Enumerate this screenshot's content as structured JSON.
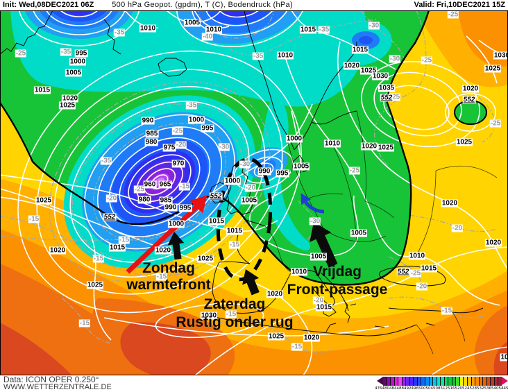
{
  "header": {
    "init_label": "Init: Wed,08DEC2021 06Z",
    "title": "500 hPa Geopot. (gpdm), T (C), Bodendruck (hPa)",
    "valid_label": "Valid: Fri,10DEC2021 15Z"
  },
  "footer": {
    "data_source": "Data: ICON OPER 0.250°",
    "website": "WWW.WETTERZENTRALE.DE"
  },
  "annotations": {
    "sunday": {
      "line1": "Zondag",
      "line2": "warmtefront",
      "arrow_color": "#e81010"
    },
    "saturday": {
      "line1": "Zaterdag",
      "line2": "Rustig onder rug",
      "arrow_color": "#0b0b0b"
    },
    "friday": {
      "line1": "Vrijdag",
      "line2": "Front-passage",
      "arrow_color": "#0b0b0b"
    },
    "flow_arrow_color": "#1f3fd0",
    "ellipse_color": "#000000"
  },
  "colorbar": {
    "unit": "gpdm",
    "ticks": [
      "476",
      "480",
      "484",
      "488",
      "492",
      "496",
      "500",
      "504",
      "508",
      "512",
      "516",
      "520",
      "524",
      "528",
      "532",
      "536",
      "540",
      "544",
      "548",
      "552",
      "556",
      "560",
      "564",
      "568",
      "572",
      "576",
      "580",
      "584",
      "588",
      "592",
      "596",
      "600"
    ],
    "cell_colors": [
      "#5c0a66",
      "#8c0bb0",
      "#bf10d4",
      "#e81ae8",
      "#f43ef4",
      "#9b24f0",
      "#6f22f4",
      "#4a26f8",
      "#2b34fa",
      "#1b50fa",
      "#0c6cf8",
      "#0a8af4",
      "#06aaee",
      "#00c8e4",
      "#00e0cc",
      "#0ce49e",
      "#0cd562",
      "#0cc83e",
      "#14c428",
      "#3cdc28",
      "#f4f400",
      "#ffd800",
      "#ffb800",
      "#ff9c00",
      "#fb8800",
      "#f07404",
      "#e26010",
      "#d04a1a",
      "#c03824",
      "#ac2832",
      "#981e3c"
    ],
    "arrow_left_color": "#46064a",
    "arrow_right_color": "#d8105e"
  },
  "map_labels": {
    "pressure": [
      [
        276,
        32,
        "1005"
      ],
      [
        212,
        40,
        "1010"
      ],
      [
        307,
        42,
        "1010"
      ],
      [
        443,
        42,
        "1015"
      ],
      [
        518,
        71,
        "1015"
      ],
      [
        410,
        79,
        "1010"
      ],
      [
        116,
        76,
        "995"
      ],
      [
        111,
        88,
        "1000"
      ],
      [
        105,
        104,
        "1005"
      ],
      [
        60,
        129,
        "1015"
      ],
      [
        100,
        141,
        "1020"
      ],
      [
        96,
        151,
        "1025"
      ],
      [
        212,
        173,
        "990"
      ],
      [
        282,
        172,
        "1000"
      ],
      [
        298,
        184,
        "995"
      ],
      [
        218,
        192,
        "985"
      ],
      [
        217,
        204,
        "980"
      ],
      [
        243,
        212,
        "975"
      ],
      [
        256,
        235,
        "970"
      ],
      [
        215,
        265,
        "960"
      ],
      [
        237,
        265,
        "965"
      ],
      [
        207,
        287,
        "980"
      ],
      [
        238,
        288,
        "985"
      ],
      [
        245,
        298,
        "990"
      ],
      [
        266,
        299,
        "995"
      ],
      [
        253,
        322,
        "1000"
      ],
      [
        334,
        260,
        "1000"
      ],
      [
        423,
        199,
        "1000"
      ],
      [
        433,
        239,
        "1005"
      ],
      [
        380,
        246,
        "990"
      ],
      [
        406,
        249,
        "995"
      ],
      [
        478,
        206,
        "1010"
      ],
      [
        358,
        288,
        "1005"
      ],
      [
        516,
        335,
        "1005"
      ],
      [
        62,
        288,
        "1025"
      ],
      [
        82,
        360,
        "1020"
      ],
      [
        168,
        356,
        "1015"
      ],
      [
        136,
        410,
        "1025"
      ],
      [
        234,
        360,
        "1020"
      ],
      [
        295,
        372,
        "1025"
      ],
      [
        337,
        332,
        "1015"
      ],
      [
        311,
        318,
        "1015"
      ],
      [
        300,
        454,
        "1030"
      ],
      [
        395,
        423,
        "1020"
      ],
      [
        430,
        391,
        "1010"
      ],
      [
        458,
        369,
        "1005"
      ],
      [
        466,
        442,
        "1015"
      ],
      [
        397,
        484,
        "1025"
      ],
      [
        448,
        486,
        "1020"
      ],
      [
        506,
        94,
        "1020"
      ],
      [
        530,
        101,
        "1025"
      ],
      [
        547,
        109,
        "1030"
      ],
      [
        556,
        126,
        "1035"
      ],
      [
        722,
        79,
        "1030"
      ],
      [
        709,
        98,
        "1025"
      ],
      [
        677,
        127,
        "1020"
      ],
      [
        668,
        204,
        "1025"
      ],
      [
        531,
        210,
        "1020"
      ],
      [
        555,
        212,
        "1025"
      ],
      [
        647,
        292,
        "1020"
      ],
      [
        710,
        349,
        "1020"
      ],
      [
        600,
        368,
        "1010"
      ],
      [
        617,
        386,
        "1015"
      ],
      [
        726,
        514,
        "10"
      ]
    ],
    "temperature": [
      [
        29,
        76,
        "-25"
      ],
      [
        94,
        74,
        "-35"
      ],
      [
        171,
        46,
        "-35"
      ],
      [
        152,
        231,
        "-35"
      ],
      [
        298,
        52,
        "-40"
      ],
      [
        371,
        80,
        "-35"
      ],
      [
        466,
        42,
        "-35"
      ],
      [
        275,
        151,
        "-35"
      ],
      [
        255,
        188,
        "-25"
      ],
      [
        260,
        208,
        "-20"
      ],
      [
        200,
        272,
        "-25"
      ],
      [
        160,
        285,
        "-20"
      ],
      [
        265,
        268,
        "-15"
      ],
      [
        322,
        211,
        "-30"
      ],
      [
        352,
        236,
        "-30"
      ],
      [
        360,
        270,
        "-20"
      ],
      [
        453,
        318,
        "-30"
      ],
      [
        510,
        245,
        "-25"
      ],
      [
        538,
        36,
        "-30"
      ],
      [
        568,
        139,
        "-25"
      ],
      [
        614,
        86,
        "-25"
      ],
      [
        652,
        20,
        "-25"
      ],
      [
        713,
        177,
        "-25"
      ],
      [
        568,
        84,
        "-30"
      ],
      [
        48,
        315,
        "-15"
      ],
      [
        141,
        372,
        "-15"
      ],
      [
        121,
        465,
        "-15"
      ],
      [
        178,
        345,
        "-15"
      ],
      [
        232,
        398,
        "-15"
      ],
      [
        337,
        352,
        "-15"
      ],
      [
        332,
        452,
        "-15"
      ],
      [
        427,
        499,
        "-15"
      ],
      [
        458,
        432,
        "-20"
      ],
      [
        607,
        412,
        "-20"
      ],
      [
        598,
        393,
        "-25"
      ],
      [
        643,
        447,
        "-15"
      ],
      [
        658,
        328,
        "-20"
      ]
    ],
    "geopotential": [
      [
        157,
        312,
        "552"
      ],
      [
        310,
        282,
        "552"
      ],
      [
        556,
        140,
        "552"
      ],
      [
        580,
        391,
        "552"
      ],
      [
        675,
        143,
        "552"
      ]
    ]
  }
}
